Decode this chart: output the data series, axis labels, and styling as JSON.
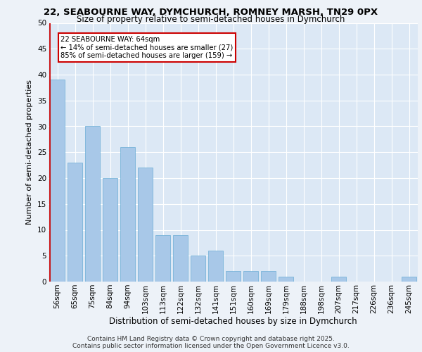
{
  "title": "22, SEABOURNE WAY, DYMCHURCH, ROMNEY MARSH, TN29 0PX",
  "subtitle": "Size of property relative to semi-detached houses in Dymchurch",
  "xlabel": "Distribution of semi-detached houses by size in Dymchurch",
  "ylabel": "Number of semi-detached properties",
  "categories": [
    "56sqm",
    "65sqm",
    "75sqm",
    "84sqm",
    "94sqm",
    "103sqm",
    "113sqm",
    "122sqm",
    "132sqm",
    "141sqm",
    "151sqm",
    "160sqm",
    "169sqm",
    "179sqm",
    "188sqm",
    "198sqm",
    "207sqm",
    "217sqm",
    "226sqm",
    "236sqm",
    "245sqm"
  ],
  "values": [
    39,
    23,
    30,
    20,
    26,
    22,
    9,
    9,
    5,
    6,
    2,
    2,
    2,
    1,
    0,
    0,
    1,
    0,
    0,
    0,
    1
  ],
  "bar_color": "#a8c8e8",
  "bar_edge_color": "#6aadd5",
  "highlight_color": "#cc0000",
  "annotation_line1": "22 SEABOURNE WAY: 64sqm",
  "annotation_line2": "← 14% of semi-detached houses are smaller (27)",
  "annotation_line3": "85% of semi-detached houses are larger (159) →",
  "annotation_box_color": "#cc0000",
  "ylim": [
    0,
    50
  ],
  "yticks": [
    0,
    5,
    10,
    15,
    20,
    25,
    30,
    35,
    40,
    45,
    50
  ],
  "footer_line1": "Contains HM Land Registry data © Crown copyright and database right 2025.",
  "footer_line2": "Contains public sector information licensed under the Open Government Licence v3.0.",
  "bg_color": "#edf2f8",
  "plot_bg_color": "#dce8f5",
  "title_fontsize": 9.5,
  "subtitle_fontsize": 8.5,
  "tick_fontsize": 7.5,
  "ylabel_fontsize": 8,
  "xlabel_fontsize": 8.5,
  "footer_fontsize": 6.5
}
